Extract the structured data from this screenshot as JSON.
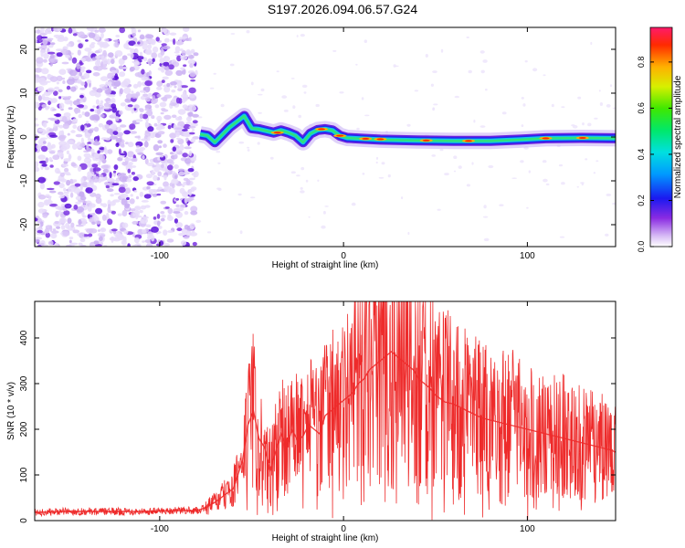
{
  "title": "S197.2026.094.06.57.G24",
  "colors": {
    "snr_line": "#ee2b2b",
    "axis": "#000000",
    "low_noise": "#d9c6f7",
    "mid_noise": "#7a32e0"
  },
  "chart_data": [
    {
      "type": "heatmap",
      "title": "S197.2026.094.06.57.G24",
      "xlabel": "Height of straight line (km)",
      "ylabel": "Frequency (Hz)",
      "xlim": [
        -168,
        148
      ],
      "ylim": [
        -25,
        25
      ],
      "xticks": [
        -100,
        0,
        100
      ],
      "xtick_labels": [
        "-100",
        "0",
        "100"
      ],
      "yticks": [
        -20,
        -10,
        0,
        10,
        20
      ],
      "ytick_labels": [
        "-20",
        "-10",
        "0",
        "10",
        "20"
      ],
      "grid": false,
      "ridge": {
        "x": [
          -78,
          -74,
          -70,
          -66,
          -62,
          -58,
          -54,
          -50,
          -46,
          -42,
          -38,
          -34,
          -30,
          -26,
          -22,
          -18,
          -14,
          -10,
          -6,
          -2,
          2,
          10,
          20,
          40,
          60,
          80,
          96,
          110,
          130,
          148
        ],
        "y": [
          0.6,
          0.3,
          -1.2,
          0.5,
          2.2,
          3.5,
          4.8,
          2.0,
          1.8,
          1.4,
          1.0,
          1.5,
          1.0,
          0.3,
          -1.2,
          0.8,
          1.6,
          1.8,
          1.5,
          0.3,
          -0.2,
          -0.4,
          -0.6,
          -0.8,
          -0.9,
          -0.9,
          -0.6,
          -0.3,
          -0.2,
          -0.3
        ]
      },
      "colorbar": {
        "label": "Normalized spectral amplitude",
        "range": [
          0,
          0.95
        ],
        "ticks": [
          0.0,
          0.2,
          0.4,
          0.6,
          0.8
        ],
        "tick_labels": [
          "0.0",
          "0.2",
          "0.4",
          "0.6",
          "0.8"
        ]
      }
    },
    {
      "type": "line",
      "xlabel": "Height of straight line (km)",
      "ylabel": "SNR (10 * v/v)",
      "xlim": [
        -168,
        148
      ],
      "ylim": [
        0,
        480
      ],
      "xticks": [
        -100,
        0,
        100
      ],
      "xtick_labels": [
        "-100",
        "0",
        "100"
      ],
      "yticks": [
        0,
        100,
        200,
        300,
        400
      ],
      "ytick_labels": [
        "0",
        "100",
        "200",
        "300",
        "400"
      ],
      "grid": false,
      "series": [
        {
          "name": "SNR",
          "x": [
            -168,
            -150,
            -130,
            -110,
            -90,
            -80,
            -75,
            -70,
            -65,
            -60,
            -55,
            -52,
            -49,
            -46,
            -43,
            -40,
            -37,
            -34,
            -31,
            -28,
            -25,
            -22,
            -19,
            -16,
            -13,
            -10,
            -7,
            -4,
            -1,
            2,
            5,
            8,
            11,
            14,
            17,
            20,
            23,
            26,
            29,
            32,
            35,
            38,
            41,
            44,
            47,
            50,
            55,
            60,
            65,
            70,
            75,
            80,
            85,
            90,
            95,
            100,
            105,
            110,
            115,
            120,
            125,
            130,
            135,
            140,
            145,
            148
          ],
          "y": [
            18,
            20,
            20,
            20,
            22,
            22,
            28,
            40,
            55,
            70,
            130,
            210,
            240,
            180,
            160,
            110,
            150,
            190,
            160,
            200,
            175,
            185,
            210,
            200,
            190,
            230,
            240,
            250,
            260,
            270,
            280,
            300,
            310,
            330,
            340,
            350,
            360,
            370,
            360,
            350,
            340,
            330,
            310,
            300,
            290,
            275,
            260,
            255,
            245,
            235,
            225,
            220,
            215,
            210,
            205,
            200,
            195,
            190,
            185,
            180,
            175,
            170,
            165,
            160,
            155,
            150
          ]
        }
      ]
    }
  ]
}
